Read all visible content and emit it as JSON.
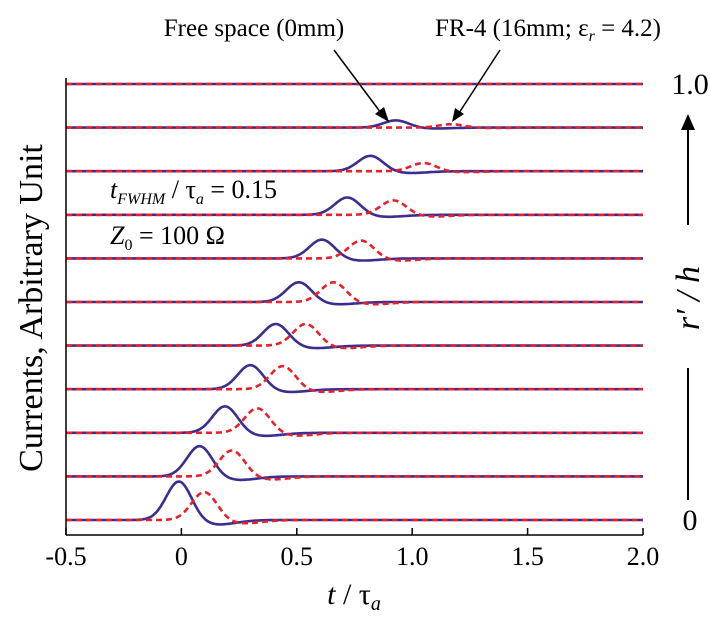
{
  "chart_data": {
    "type": "line",
    "title": "",
    "ylabel": "Currents, Arbitrary Unit",
    "xlabel": {
      "main": "t",
      "sep": " / τ",
      "sub": "a"
    },
    "xlim": [
      -0.5,
      2.0
    ],
    "x_ticks": [
      "-0.5",
      "0",
      "0.5",
      "1.0",
      "1.5",
      "2.0"
    ],
    "x_tick_values": [
      -0.5,
      0,
      0.5,
      1.0,
      1.5,
      2.0
    ],
    "grid": false,
    "right_axis": {
      "label": "r′ / h",
      "top": "1.0",
      "bottom": "0"
    },
    "traces": 11,
    "series": [
      {
        "name": "Free space (0mm)",
        "color": "#3b2e8f",
        "style": "solid",
        "peak_times": [
          -0.01,
          0.08,
          0.19,
          0.3,
          0.41,
          0.51,
          0.61,
          0.72,
          0.82,
          0.93,
          1.0
        ],
        "peak_heights": [
          0.8,
          0.63,
          0.55,
          0.5,
          0.45,
          0.41,
          0.39,
          0.36,
          0.32,
          0.15,
          0
        ]
      },
      {
        "name": "FR-4 (16mm; ε_r = 4.2)",
        "color": "#e8202a",
        "style": "dashed",
        "peak_times": [
          0.1,
          0.22,
          0.33,
          0.44,
          0.54,
          0.66,
          0.78,
          0.92,
          1.05,
          1.17,
          1.3
        ],
        "peak_heights": [
          0.58,
          0.54,
          0.51,
          0.48,
          0.45,
          0.41,
          0.37,
          0.3,
          0.17,
          0.07,
          0
        ]
      }
    ],
    "annotations": {
      "free_space": "Free space (0mm)",
      "fr4_prefix": "FR-4 (16mm; ",
      "fr4_eps": "ε",
      "fr4_eps_sub": "r",
      "fr4_suffix": " = 4.2)",
      "pulse_main": "t",
      "pulse_sub": "FWHM",
      "pulse_sep": " / τ",
      "pulse_sub2": "a",
      "pulse_value": " = 0.15",
      "z0_main": "Z",
      "z0_sub": "0",
      "z0_value": " = 100 Ω"
    }
  }
}
